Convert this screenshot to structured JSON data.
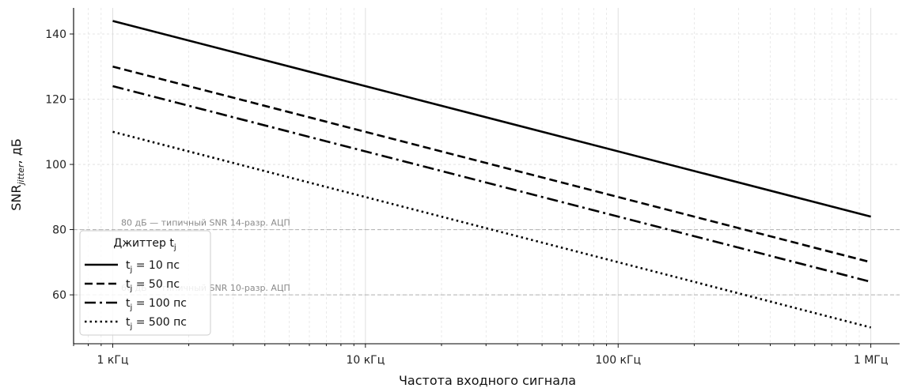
{
  "chart_data": {
    "type": "line",
    "xlabel": "Частота входного сигнала",
    "ylabel_main": "SNR",
    "ylabel_sub": "jitter",
    "ylabel_unit": ", дБ",
    "x_scale": "log",
    "x_unit": "Гц",
    "xlim": [
      700,
      1300000
    ],
    "ylim": [
      45,
      148
    ],
    "x_ticks": [
      {
        "value": 1000,
        "label": "1 кГц"
      },
      {
        "value": 10000,
        "label": "10 кГц"
      },
      {
        "value": 100000,
        "label": "100 кГц"
      },
      {
        "value": 1000000,
        "label": "1 МГц"
      }
    ],
    "y_ticks": [
      60,
      80,
      100,
      120,
      140
    ],
    "grid": true,
    "legend": {
      "title_main": "Джиттер t",
      "title_sub": "j",
      "placement": "lower-left"
    },
    "series": [
      {
        "label_main": "t",
        "label_sub": "j",
        "label_rest": " = 10 пс",
        "style": "solid",
        "x": [
          1000,
          1000000
        ],
        "y": [
          144.0,
          84.0
        ]
      },
      {
        "label_main": "t",
        "label_sub": "j",
        "label_rest": " = 50 пс",
        "style": "dashed",
        "x": [
          1000,
          1000000
        ],
        "y": [
          130.0,
          70.0
        ]
      },
      {
        "label_main": "t",
        "label_sub": "j",
        "label_rest": " = 100 пс",
        "style": "dashdot",
        "x": [
          1000,
          1000000
        ],
        "y": [
          124.0,
          64.0
        ]
      },
      {
        "label_main": "t",
        "label_sub": "j",
        "label_rest": " = 500 пс",
        "style": "dotted",
        "x": [
          1000,
          1000000
        ],
        "y": [
          110.0,
          50.0
        ]
      }
    ],
    "reference_lines": [
      {
        "y": 80,
        "label": "80 дБ — типичный SNR 14-разр. АЦП"
      },
      {
        "y": 60,
        "label": "60 дБ — типичный SNR 10-разр. АЦП"
      }
    ],
    "colors": {
      "series": "#000000",
      "grid": "#dcdcdc",
      "reference": "#b0b0b0",
      "reference_text": "#8a8a8a"
    }
  }
}
